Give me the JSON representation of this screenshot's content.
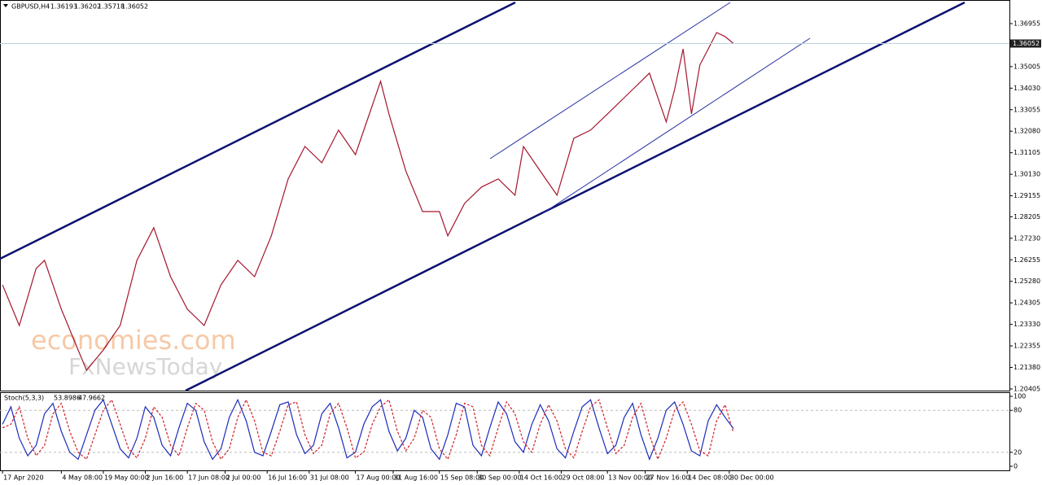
{
  "chart_data": [
    {
      "type": "line",
      "title": "GBPUSD,H4",
      "ohlc": [
        1.36193,
        1.36202,
        1.35718,
        1.36052
      ],
      "last_price": 1.36052,
      "color": "#a5162e",
      "x": [
        0,
        4,
        8,
        10,
        14,
        18,
        20,
        24,
        28,
        32,
        36,
        40,
        44,
        48,
        52,
        56,
        60,
        64,
        68,
        72,
        76,
        80,
        84,
        88,
        90,
        92,
        96,
        100,
        104,
        106,
        110,
        114,
        118,
        122,
        124,
        128,
        132,
        136,
        140,
        144,
        148,
        150,
        154,
        158,
        160,
        162,
        164,
        166,
        168,
        170,
        172,
        174
      ],
      "values": [
        1.2512,
        1.2328,
        1.2586,
        1.2623,
        1.2402,
        1.2217,
        1.2125,
        1.2217,
        1.2328,
        1.2623,
        1.2771,
        1.2549,
        1.2402,
        1.2328,
        1.2512,
        1.2623,
        1.2549,
        1.2734,
        1.2992,
        1.3139,
        1.3065,
        1.3213,
        1.3102,
        1.3323,
        1.3434,
        1.3286,
        1.3028,
        1.2844,
        1.2844,
        1.2734,
        1.2881,
        1.2955,
        1.2992,
        1.2918,
        1.3139,
        1.3028,
        1.2918,
        1.3176,
        1.3213,
        1.3286,
        1.336,
        1.3397,
        1.3471,
        1.325,
        1.3397,
        1.3581,
        1.3286,
        1.3508,
        1.3581,
        1.3655,
        1.3637,
        1.3605
      ],
      "xlim": [
        -0.6,
        239.7
      ],
      "ylim": [
        1.2033,
        1.3795
      ],
      "yticks": [
        1.36955,
        1.35005,
        {
          "value": 1.3403,
          "label": "1.34030"
        },
        1.33055,
        {
          "value": 1.3208,
          "label": "1.32080"
        },
        1.31105,
        {
          "value": 1.3013,
          "label": "1.30130"
        },
        1.29155,
        1.28205,
        {
          "value": 1.2723,
          "label": "1.27230"
        },
        1.26255,
        {
          "value": 1.2528,
          "label": "1.25280"
        },
        1.24305,
        {
          "value": 1.2333,
          "label": "1.23330"
        },
        1.22355,
        {
          "value": 1.2138,
          "label": "1.21380"
        },
        1.20405
      ],
      "watermark": [
        "economies.com",
        "FxNewsToday"
      ]
    },
    {
      "type": "line",
      "title": "Stoch(5,3,3)",
      "indicator_values": [
        53.8986,
        47.9662
      ],
      "x": [
        0,
        2,
        4,
        6,
        8,
        10,
        12,
        14,
        16,
        18,
        20,
        22,
        24,
        26,
        28,
        30,
        32,
        34,
        36,
        38,
        40,
        42,
        44,
        46,
        48,
        50,
        52,
        54,
        56,
        58,
        60,
        62,
        64,
        66,
        68,
        70,
        72,
        74,
        76,
        78,
        80,
        82,
        84,
        86,
        88,
        90,
        92,
        94,
        96,
        98,
        100,
        102,
        104,
        106,
        108,
        110,
        112,
        114,
        116,
        118,
        120,
        122,
        124,
        126,
        128,
        130,
        132,
        134,
        136,
        138,
        140,
        142,
        144,
        146,
        148,
        150,
        152,
        154,
        156,
        158,
        160,
        162,
        164,
        166,
        168,
        170,
        172,
        174
      ],
      "series": [
        {
          "color": "#1c2bb8",
          "values": [
            60,
            85,
            40,
            15,
            30,
            75,
            90,
            50,
            20,
            10,
            45,
            80,
            95,
            60,
            25,
            12,
            40,
            85,
            70,
            30,
            15,
            55,
            90,
            80,
            35,
            10,
            25,
            70,
            95,
            65,
            20,
            15,
            50,
            88,
            92,
            45,
            18,
            30,
            75,
            90,
            55,
            12,
            20,
            60,
            85,
            95,
            50,
            22,
            40,
            80,
            70,
            25,
            10,
            45,
            90,
            85,
            30,
            15,
            55,
            92,
            75,
            35,
            20,
            60,
            88,
            65,
            25,
            12,
            50,
            85,
            95,
            55,
            18,
            30,
            70,
            90,
            45,
            10,
            40,
            80,
            92,
            60,
            22,
            15,
            65,
            88,
            70,
            54
          ]
        },
        {
          "color": "#d0202a",
          "values": [
            55,
            60,
            85,
            40,
            15,
            30,
            75,
            90,
            50,
            20,
            10,
            45,
            80,
            95,
            60,
            25,
            12,
            40,
            85,
            70,
            30,
            15,
            55,
            90,
            80,
            35,
            10,
            25,
            70,
            95,
            65,
            20,
            15,
            50,
            88,
            92,
            45,
            18,
            30,
            75,
            90,
            55,
            12,
            20,
            60,
            85,
            95,
            50,
            22,
            40,
            80,
            70,
            25,
            10,
            45,
            90,
            85,
            30,
            15,
            55,
            92,
            75,
            35,
            20,
            60,
            88,
            65,
            25,
            12,
            50,
            85,
            95,
            55,
            18,
            30,
            70,
            90,
            45,
            10,
            40,
            80,
            92,
            60,
            22,
            15,
            65,
            88,
            48
          ]
        }
      ],
      "xlim": [
        -0.6,
        239.7
      ],
      "ylim": [
        -5.8,
        104.7
      ],
      "yticks": [
        100,
        80,
        20,
        0
      ],
      "xticks": [
        {
          "value": 0,
          "label": "17 Apr 2020"
        },
        {
          "value": 14,
          "label": "4 May 08:00"
        },
        {
          "value": 24,
          "label": "19 May 00:00"
        },
        {
          "value": 34,
          "label": "2 Jun 16:00"
        },
        {
          "value": 44,
          "label": "17 Jun 08:00"
        },
        {
          "value": 53,
          "label": "2 Jul 00:00"
        },
        {
          "value": 63,
          "label": "16 Jul 16:00"
        },
        {
          "value": 73,
          "label": "31 Jul 08:00"
        },
        {
          "value": 84,
          "label": "17 Aug 00:00"
        },
        {
          "value": 93,
          "label": "31 Aug 16:00"
        },
        {
          "value": 104,
          "label": "15 Sep 08:00"
        },
        {
          "value": 113,
          "label": "30 Sep 00:00"
        },
        {
          "value": 123,
          "label": "14 Oct 16:00"
        },
        {
          "value": 133,
          "label": "29 Oct 08:00"
        },
        {
          "value": 144,
          "label": "13 Nov 00:00"
        },
        {
          "value": 153,
          "label": "27 Nov 16:00"
        },
        {
          "value": 163,
          "label": "14 Dec 08:00"
        },
        {
          "value": 173,
          "label": "30 Dec 00:00"
        }
      ]
    }
  ]
}
